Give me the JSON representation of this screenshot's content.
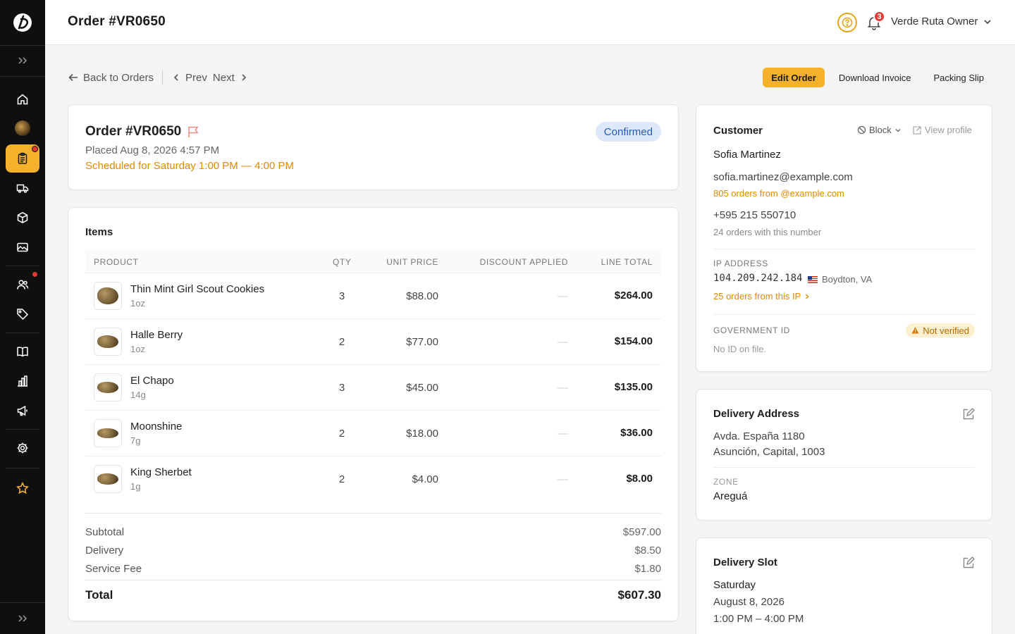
{
  "header": {
    "title": "Order #VR0650",
    "notifications_count": "3",
    "user_name": "Verde Ruta Owner"
  },
  "toolbar": {
    "back_label": "Back to Orders",
    "prev_label": "Prev",
    "next_label": "Next",
    "edit_label": "Edit Order",
    "invoice_label": "Download Invoice",
    "packing_label": "Packing Slip"
  },
  "order": {
    "title": "Order #VR0650",
    "placed": "Placed Aug 8, 2026 4:57 PM",
    "scheduled": "Scheduled for Saturday 1:00 PM — 4:00 PM",
    "status": "Confirmed"
  },
  "items": {
    "title": "Items",
    "columns": [
      "PRODUCT",
      "QTY",
      "UNIT PRICE",
      "DISCOUNT APPLIED",
      "LINE TOTAL"
    ],
    "rows": [
      {
        "name": "Thin Mint Girl Scout Cookies",
        "size": "1oz",
        "qty": "3",
        "unit_price": "$88.00",
        "discount": "—",
        "line_total": "$264.00"
      },
      {
        "name": "Halle Berry",
        "size": "1oz",
        "qty": "2",
        "unit_price": "$77.00",
        "discount": "—",
        "line_total": "$154.00"
      },
      {
        "name": "El Chapo",
        "size": "14g",
        "qty": "3",
        "unit_price": "$45.00",
        "discount": "—",
        "line_total": "$135.00"
      },
      {
        "name": "Moonshine",
        "size": "7g",
        "qty": "2",
        "unit_price": "$18.00",
        "discount": "—",
        "line_total": "$36.00"
      },
      {
        "name": "King Sherbet",
        "size": "1g",
        "qty": "2",
        "unit_price": "$4.00",
        "discount": "—",
        "line_total": "$8.00"
      }
    ]
  },
  "summary": {
    "subtotal_label": "Subtotal",
    "subtotal": "$597.00",
    "delivery_label": "Delivery",
    "delivery": "$8.50",
    "service_label": "Service Fee",
    "service": "$1.80",
    "total_label": "Total",
    "total": "$607.30"
  },
  "customer": {
    "title": "Customer",
    "block_label": "Block",
    "view_profile_label": "View profile",
    "name": "Sofia Martinez",
    "email": "sofia.martinez@example.com",
    "email_orders": "805 orders from @example.com",
    "phone": "+595 215 550710",
    "phone_orders": "24 orders with this number",
    "ip_label": "IP ADDRESS",
    "ip": "104.209.242.184",
    "ip_location": "Boydton, VA",
    "ip_orders": "25 orders from this IP",
    "gov_id_label": "GOVERNMENT ID",
    "gov_id_status": "Not verified",
    "gov_id_note": "No ID on file."
  },
  "delivery_address": {
    "title": "Delivery Address",
    "line1": "Avda. España 1180",
    "line2": "Asunción, Capital, 1003",
    "zone_label": "ZONE",
    "zone": "Areguá"
  },
  "delivery_slot": {
    "title": "Delivery Slot",
    "day": "Saturday",
    "date": "August 8, 2026",
    "time": "1:00 PM – 4:00 PM"
  },
  "colors": {
    "accent": "#f6b12c",
    "sidebar_bg": "#0f0f0f",
    "status_blue": "#2459b8",
    "warning_orange": "#e08a00",
    "danger_red": "#e53935"
  }
}
